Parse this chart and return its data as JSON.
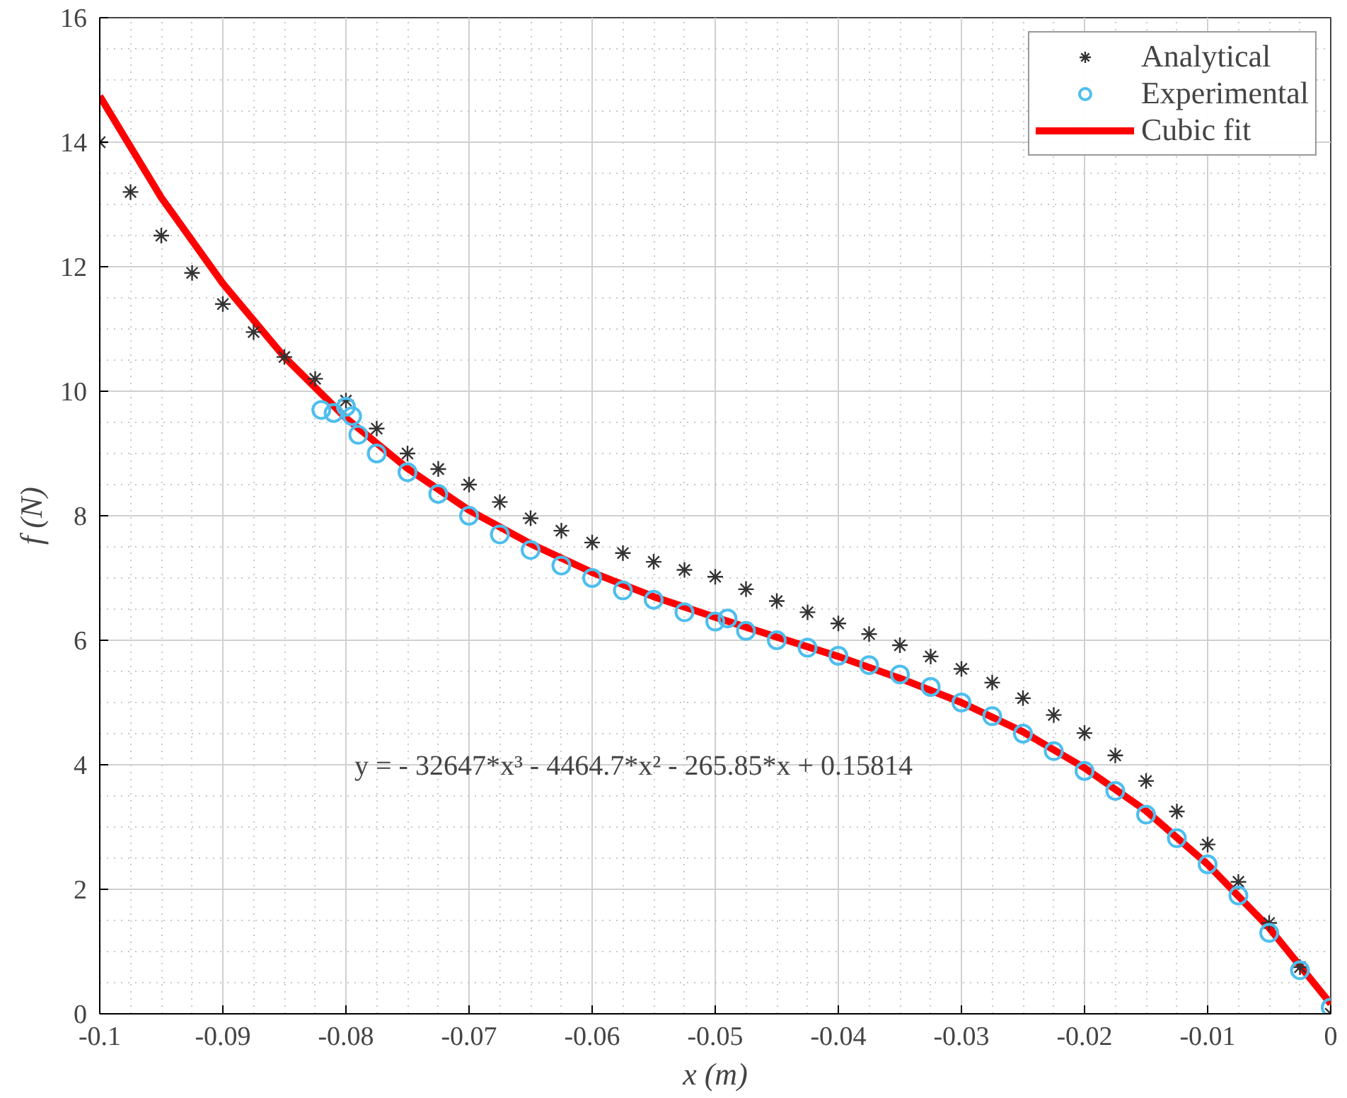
{
  "chart_data": {
    "type": "scatter",
    "xlabel": "x (m)",
    "ylabel": "f (N)",
    "xlim": [
      -0.1,
      0
    ],
    "ylim": [
      0,
      16
    ],
    "xticks": [
      -0.1,
      -0.09,
      -0.08,
      -0.07,
      -0.06,
      -0.05,
      -0.04,
      -0.03,
      -0.02,
      -0.01,
      0
    ],
    "yticks": [
      0,
      2,
      4,
      6,
      8,
      10,
      12,
      14,
      16
    ],
    "grid": true,
    "legend": "top right",
    "annotations": [
      "y = - 32647*x³ - 4464.7*x² - 265.85*x + 0.15814"
    ],
    "series": [
      {
        "name": "Analytical",
        "marker": "cross",
        "color": "#333333",
        "x": [
          -0.1,
          -0.0975,
          -0.095,
          -0.0925,
          -0.09,
          -0.0875,
          -0.085,
          -0.0825,
          -0.08,
          -0.0775,
          -0.075,
          -0.0725,
          -0.07,
          -0.0675,
          -0.065,
          -0.0625,
          -0.06,
          -0.0575,
          -0.055,
          -0.0525,
          -0.05,
          -0.0475,
          -0.045,
          -0.0425,
          -0.04,
          -0.0375,
          -0.035,
          -0.0325,
          -0.03,
          -0.0275,
          -0.025,
          -0.0225,
          -0.02,
          -0.0175,
          -0.015,
          -0.0125,
          -0.01,
          -0.0075,
          -0.005,
          -0.0025,
          0
        ],
        "values": [
          14.0,
          13.2,
          12.5,
          11.9,
          11.4,
          10.95,
          10.55,
          10.2,
          9.85,
          9.4,
          9.0,
          8.75,
          8.5,
          8.22,
          7.96,
          7.76,
          7.57,
          7.4,
          7.26,
          7.13,
          7.02,
          6.82,
          6.63,
          6.45,
          6.27,
          6.1,
          5.92,
          5.74,
          5.54,
          5.32,
          5.07,
          4.8,
          4.51,
          4.15,
          3.74,
          3.25,
          2.72,
          2.12,
          1.46,
          0.75,
          0
        ]
      },
      {
        "name": "Experimental",
        "marker": "circle",
        "color": "#4dbeee",
        "x": [
          -0.082,
          -0.081,
          -0.08,
          -0.0795,
          -0.079,
          -0.0775,
          -0.075,
          -0.0725,
          -0.07,
          -0.0675,
          -0.065,
          -0.0625,
          -0.06,
          -0.0575,
          -0.055,
          -0.0525,
          -0.05,
          -0.049,
          -0.0475,
          -0.045,
          -0.0425,
          -0.04,
          -0.0375,
          -0.035,
          -0.0325,
          -0.03,
          -0.0275,
          -0.025,
          -0.0225,
          -0.02,
          -0.0175,
          -0.015,
          -0.0125,
          -0.01,
          -0.0075,
          -0.005,
          -0.0025,
          0
        ],
        "values": [
          9.7,
          9.65,
          9.75,
          9.6,
          9.3,
          9.0,
          8.7,
          8.35,
          8.0,
          7.7,
          7.45,
          7.2,
          7.0,
          6.8,
          6.65,
          6.45,
          6.3,
          6.35,
          6.15,
          6.0,
          5.88,
          5.75,
          5.6,
          5.45,
          5.25,
          5.0,
          4.78,
          4.5,
          4.22,
          3.9,
          3.58,
          3.2,
          2.82,
          2.4,
          1.9,
          1.3,
          0.7,
          0.1
        ]
      },
      {
        "name": "Cubic fit",
        "type": "line",
        "marker": "none",
        "color": "#ff0000",
        "x": [
          -0.1,
          -0.095,
          -0.09,
          -0.085,
          -0.08,
          -0.075,
          -0.07,
          -0.065,
          -0.06,
          -0.055,
          -0.05,
          -0.045,
          -0.04,
          -0.035,
          -0.03,
          -0.025,
          -0.02,
          -0.015,
          -0.01,
          -0.005,
          0
        ],
        "values": [
          14.74,
          13.11,
          11.73,
          10.55,
          9.57,
          8.76,
          8.09,
          7.55,
          7.09,
          6.7,
          6.37,
          6.05,
          5.74,
          5.39,
          5.0,
          4.53,
          3.95,
          3.26,
          2.4,
          1.38,
          0.16
        ]
      }
    ]
  }
}
